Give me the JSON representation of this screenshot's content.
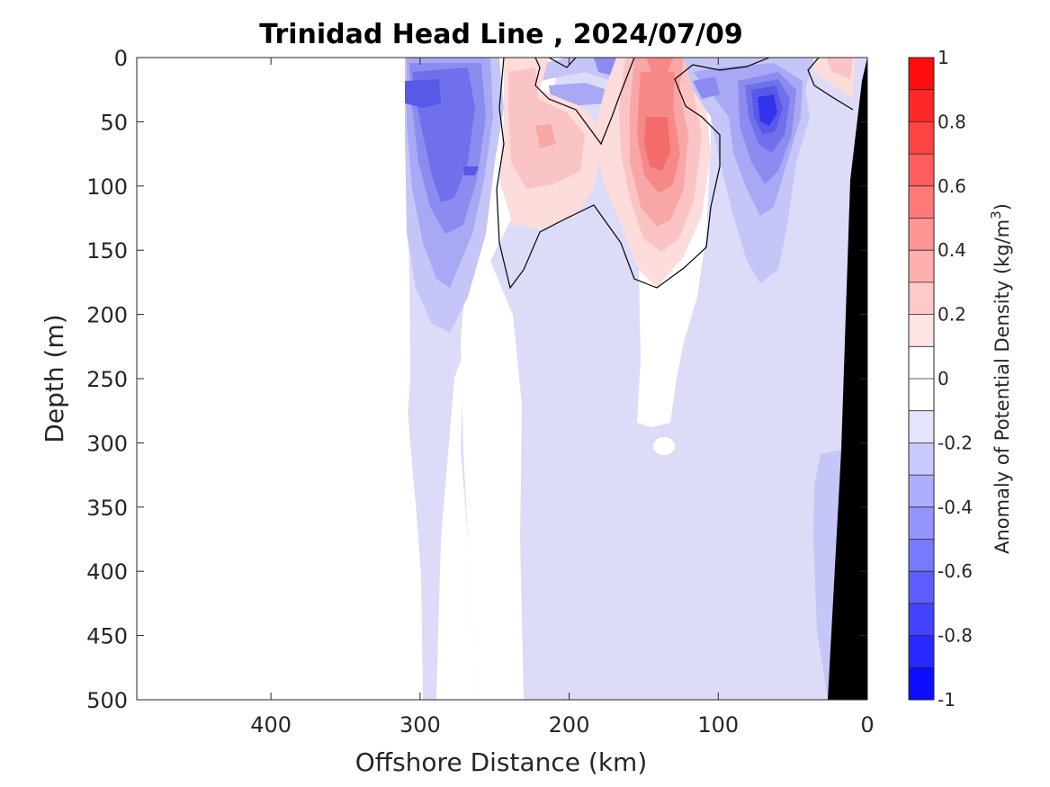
{
  "chart_data": {
    "type": "contour",
    "title": "Trinidad Head Line , 2024/07/09",
    "xlabel": "Offshore Distance (km)",
    "ylabel": "Depth (m)",
    "xlim": [
      490,
      0
    ],
    "ylim": [
      0,
      500
    ],
    "x_reversed": true,
    "y_reversed": true,
    "xticks": [
      "400",
      "300",
      "200",
      "100",
      "0"
    ],
    "yticks": [
      "0",
      "50",
      "100",
      "150",
      "200",
      "250",
      "300",
      "350",
      "400",
      "450",
      "500"
    ],
    "colorbar": {
      "label": "Anomaly of Potential Density (kg/m",
      "label_superscript": "3",
      "label_suffix": ")",
      "range": [
        -1,
        1
      ],
      "ticks": [
        "1",
        "0.8",
        "0.6",
        "0.4",
        "0.2",
        "0",
        "-0.2",
        "-0.4",
        "-0.6",
        "-0.8",
        "-1"
      ],
      "levels": 20
    },
    "colors": {
      "neg_max": "#0000ff",
      "pos_max": "#ff0000",
      "neutral": "#ffffff",
      "bathymetry": "#000000",
      "zero_contour": "#000000"
    },
    "anomaly_features": [
      {
        "label": "positive anomaly",
        "x": 140,
        "y_top": 0,
        "y_bottom": 180,
        "peak": 0.6
      },
      {
        "label": "positive anomaly",
        "x": 205,
        "y_top": 0,
        "y_bottom": 150,
        "peak": 0.3
      },
      {
        "label": "negative anomaly",
        "x": 70,
        "y_top": 0,
        "y_bottom": 170,
        "peak": -0.8
      },
      {
        "label": "negative anomaly",
        "x": 275,
        "y_top": 0,
        "y_bottom": 210,
        "peak": -0.5
      },
      {
        "label": "weak negative background",
        "x_range": [
          290,
          20
        ],
        "y_range": [
          150,
          500
        ],
        "value": -0.1
      }
    ],
    "data_extent_km": [
      310,
      0
    ]
  }
}
